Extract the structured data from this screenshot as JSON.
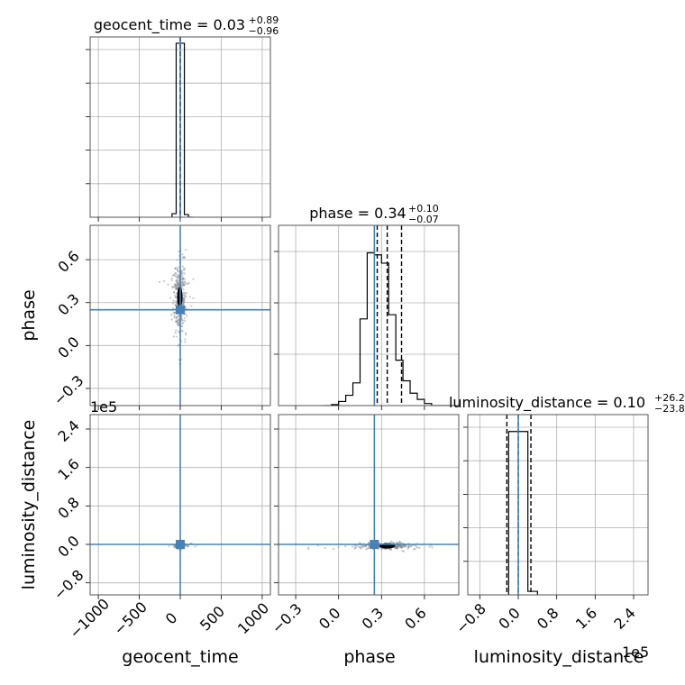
{
  "chart_data": {
    "type": "corner",
    "colors": {
      "truth": "#4682b4",
      "hist": "#000000",
      "grid": "#b0b0b0",
      "samples": "#888888"
    },
    "parameters": [
      "geocent_time",
      "phase",
      "luminosity_distance"
    ],
    "truths": {
      "geocent_time": 0,
      "phase": 0.25,
      "luminosity_distance": 0
    },
    "diagonal_titles": [
      {
        "param": "geocent_time",
        "text": "geocent_time = 0.03",
        "sup": "+0.89",
        "sub": "−0.96"
      },
      {
        "param": "phase",
        "text": "phase = 0.34",
        "sup": "+0.10",
        "sub": "−0.07"
      },
      {
        "param": "luminosity_distance",
        "text": "luminosity_distance = 0.10",
        "sup": "+26.23",
        "sub": "−23.81"
      }
    ],
    "ranges": {
      "geocent_time": [
        -1100,
        1100
      ],
      "phase": [
        -0.42,
        0.84
      ],
      "luminosity_distance": [
        -105000,
        270000
      ]
    },
    "axis_labels": {
      "x": [
        "geocent_time",
        "phase",
        "luminosity_distance"
      ],
      "y": [
        "phase",
        "luminosity_distance"
      ]
    },
    "ticks": {
      "geocent_time": {
        "values": [
          -1000,
          -500,
          0,
          500,
          1000
        ],
        "labels": [
          "−1000",
          "−500",
          "0",
          "500",
          "1000"
        ]
      },
      "phase": {
        "values": [
          -0.3,
          0.0,
          0.3,
          0.6
        ],
        "labels": [
          "−0.3",
          "0.0",
          "0.3",
          "0.6"
        ]
      },
      "luminosity_distance": {
        "values": [
          -80000,
          0,
          80000,
          160000,
          240000
        ],
        "labels": [
          "−0.8",
          "0.0",
          "0.8",
          "1.6",
          "2.4"
        ]
      }
    },
    "offset_text": {
      "luminosity_distance_y": "1e5",
      "luminosity_distance_x": "1e5"
    },
    "histograms": {
      "geocent_time": {
        "bins": [
          -100,
          -50,
          0,
          50,
          100,
          150
        ],
        "counts": [
          0.02,
          0.98,
          0.98,
          0.015,
          0.0
        ],
        "ymax": 1.0,
        "quantiles": [
          -0.93,
          0.03,
          0.92
        ]
      },
      "phase": {
        "bins": [
          -0.1,
          -0.05,
          0.0,
          0.05,
          0.1,
          0.15,
          0.2,
          0.25,
          0.3,
          0.35,
          0.4,
          0.45,
          0.5,
          0.55,
          0.6,
          0.65,
          0.7,
          0.75,
          0.8
        ],
        "counts": [
          0.0,
          0.005,
          0.02,
          0.05,
          0.11,
          0.42,
          0.74,
          0.73,
          0.69,
          0.44,
          0.22,
          0.12,
          0.06,
          0.03,
          0.01,
          0.0,
          0.0,
          0.0
        ],
        "ymax": 0.86,
        "quantiles": [
          0.27,
          0.34,
          0.44
        ]
      },
      "luminosity_distance": {
        "bins": [
          -20000,
          0,
          20000,
          40000
        ],
        "counts": [
          0.92,
          0.92,
          0.02
        ],
        "ymax": 1.0,
        "quantiles": [
          -23710,
          100,
          26330
        ]
      }
    },
    "scatter_2d": {
      "phase_vs_geocent_time": {
        "center": [
          -5,
          0.34
        ],
        "spread": [
          40,
          0.12
        ],
        "count": 350
      },
      "luminosity_distance_vs_geocent_time": {
        "center": [
          0,
          -3000
        ],
        "spread": [
          30,
          2500
        ],
        "count": 200
      },
      "luminosity_distance_vs_phase": {
        "center": [
          0.34,
          -3000
        ],
        "spread": [
          0.09,
          3200
        ],
        "count": 320
      }
    }
  }
}
